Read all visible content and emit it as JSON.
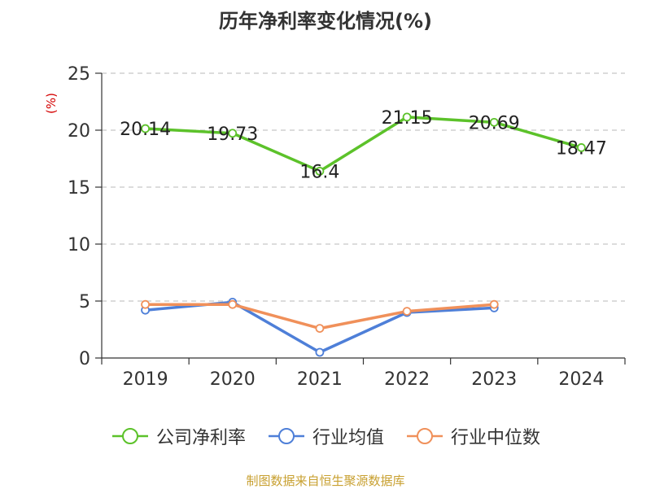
{
  "chart_data": {
    "type": "line",
    "title": "历年净利率变化情况(%)",
    "ylabel": "(%)",
    "categories": [
      "2019",
      "2020",
      "2021",
      "2022",
      "2023",
      "2024"
    ],
    "ylim": [
      0,
      25
    ],
    "yticks": [
      0,
      5,
      10,
      15,
      20,
      25
    ],
    "grid": true,
    "legend_position": "bottom",
    "series": [
      {
        "name": "公司净利率",
        "color": "#5cc22a",
        "show_labels": true,
        "values": [
          20.14,
          19.73,
          16.4,
          21.15,
          20.69,
          18.47
        ],
        "labels": [
          "20.14",
          "19.73",
          "16.4",
          "21.15",
          "20.69",
          "18.47"
        ]
      },
      {
        "name": "行业均值",
        "color": "#4e7fd8",
        "show_labels": false,
        "values": [
          4.2,
          4.9,
          0.5,
          4.0,
          4.4,
          null
        ]
      },
      {
        "name": "行业中位数",
        "color": "#f0905a",
        "show_labels": false,
        "values": [
          4.7,
          4.7,
          2.6,
          4.1,
          4.7,
          null
        ]
      }
    ]
  },
  "source": "制图数据来自恒生聚源数据库"
}
